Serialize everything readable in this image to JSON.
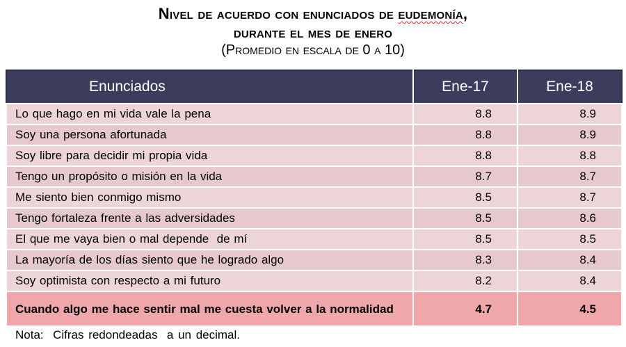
{
  "title": {
    "line1_prefix": "Nivel de acuerdo con enunciados de ",
    "line1_keyword": "eudemonía",
    "line1_suffix": ",",
    "line2": "durante el mes de enero",
    "subtitle": "(Promedio en escala de 0 a 10)"
  },
  "table": {
    "headers": [
      "Enunciados",
      "Ene-17",
      "Ene-18"
    ],
    "rows": [
      {
        "statement": "Lo que hago en mi vida vale la pena",
        "ene17": "8.8",
        "ene18": "8.9"
      },
      {
        "statement": "Soy una persona afortunada",
        "ene17": "8.8",
        "ene18": "8.9"
      },
      {
        "statement": "Soy libre para decidir mi propia vida",
        "ene17": "8.8",
        "ene18": "8.8"
      },
      {
        "statement": "Tengo un propósito o misión en la vida",
        "ene17": "8.7",
        "ene18": "8.7"
      },
      {
        "statement": "Me siento bien conmigo mismo",
        "ene17": "8.5",
        "ene18": "8.7"
      },
      {
        "statement": "Tengo fortaleza frente a las adversidades",
        "ene17": "8.5",
        "ene18": "8.6"
      },
      {
        "statement": "El que me vaya bien o mal depende  de mí",
        "ene17": "8.5",
        "ene18": "8.5"
      },
      {
        "statement": "La mayoría de los días siento que he logrado algo",
        "ene17": "8.3",
        "ene18": "8.4"
      },
      {
        "statement": "Soy optimista con respecto a mi futuro",
        "ene17": "8.2",
        "ene18": "8.4"
      },
      {
        "statement": "Cuando algo me hace sentir mal me cuesta volver a la normalidad",
        "ene17": "4.7",
        "ene18": "4.5"
      }
    ],
    "highlighted_row_index": 9
  },
  "note": "Nota:  Cifras redondeadas  a un decimal.",
  "colors": {
    "header_bg": "#3c3d5c",
    "row_bg_light": "#ecd4d7",
    "row_bg_dark": "#e6c9cd",
    "highlight_bg": "#f0a7ac"
  }
}
